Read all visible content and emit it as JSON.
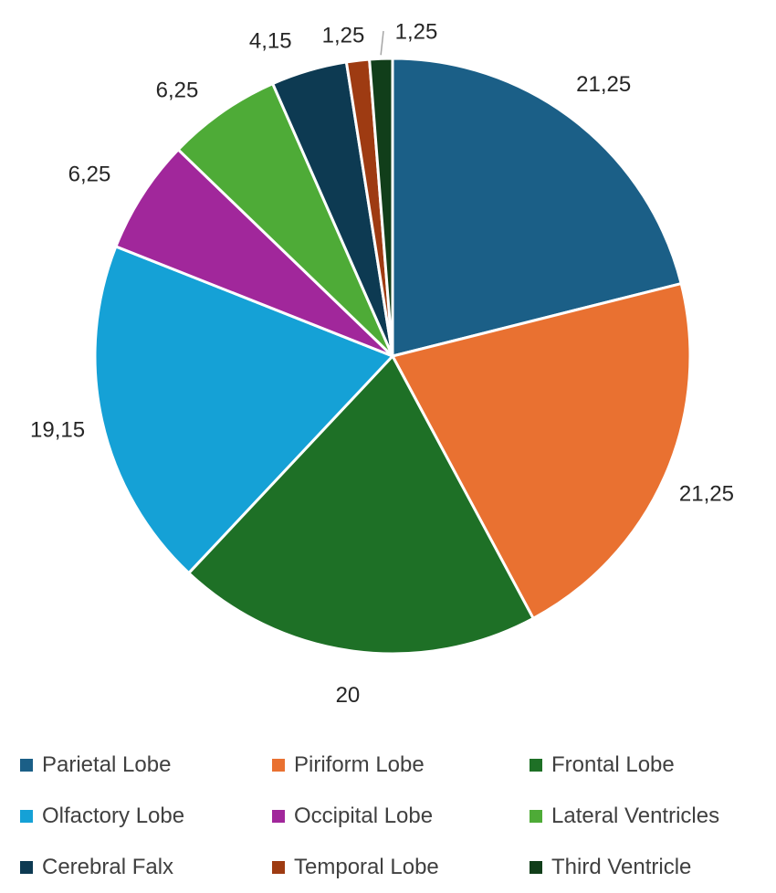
{
  "chart_data": {
    "type": "pie",
    "title": "",
    "categories": [
      "Parietal Lobe",
      "Piriform Lobe",
      "Frontal Lobe",
      "Olfactory Lobe",
      "Occipital Lobe",
      "Lateral Ventricles",
      "Cerebral Falx",
      "Temporal Lobe",
      "Third Ventricle"
    ],
    "values": [
      21.25,
      21.25,
      20,
      19.15,
      6.25,
      6.25,
      4.15,
      1.25,
      1.25
    ],
    "value_labels": [
      "21,25",
      "21,25",
      "20",
      "19,15",
      "6,25",
      "6,25",
      "4,15",
      "1,25",
      "1,25"
    ],
    "colors": [
      "#1b5f87",
      "#e97131",
      "#1e7026",
      "#15a1d6",
      "#a1279b",
      "#4eab37",
      "#0d3a52",
      "#9e3b12",
      "#113e1a"
    ],
    "legend_position": "bottom",
    "start_angle": "top",
    "direction": "clockwise"
  }
}
